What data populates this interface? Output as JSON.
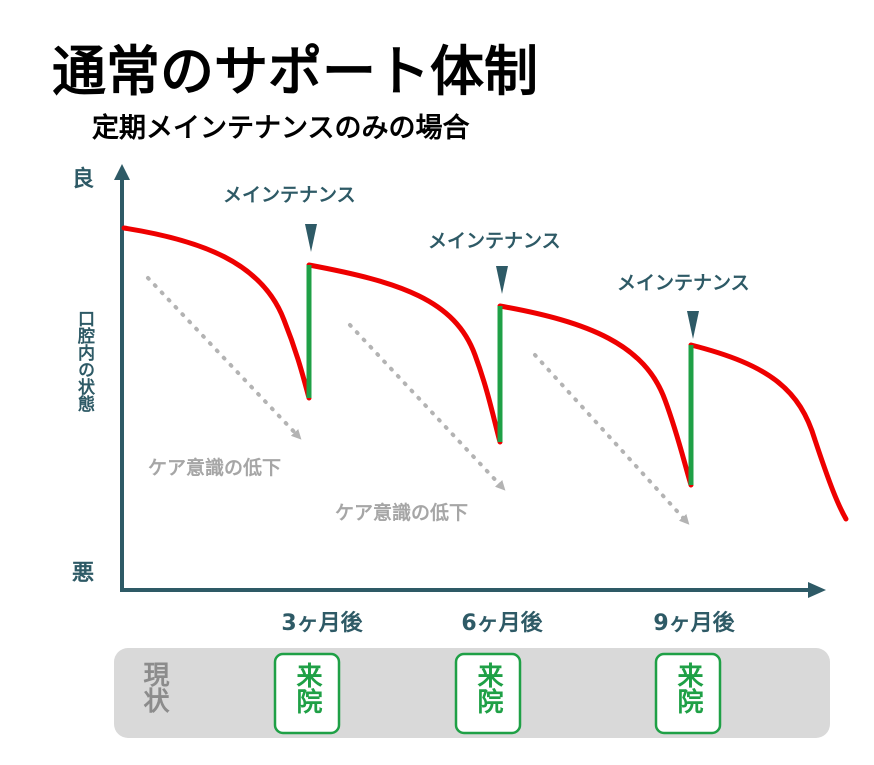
{
  "title": "通常のサポート体制",
  "subtitle": "定期メインテナンスのみの場合",
  "axis": {
    "y_top": "良",
    "y_label": "口腔内の状態",
    "y_bottom": "悪"
  },
  "maintenance_label": "メインテナンス",
  "care_label": "ケア意識の低下",
  "months": [
    "3ヶ月後",
    "6ヶ月後",
    "9ヶ月後"
  ],
  "status_label": "現状",
  "visit_label": "来院",
  "colors": {
    "curve": "#ee0000",
    "recovery": "#1fa046",
    "axis": "#2e5a66",
    "dotted": "#b3b3b3",
    "status_bar": "#d9d9d9"
  }
}
